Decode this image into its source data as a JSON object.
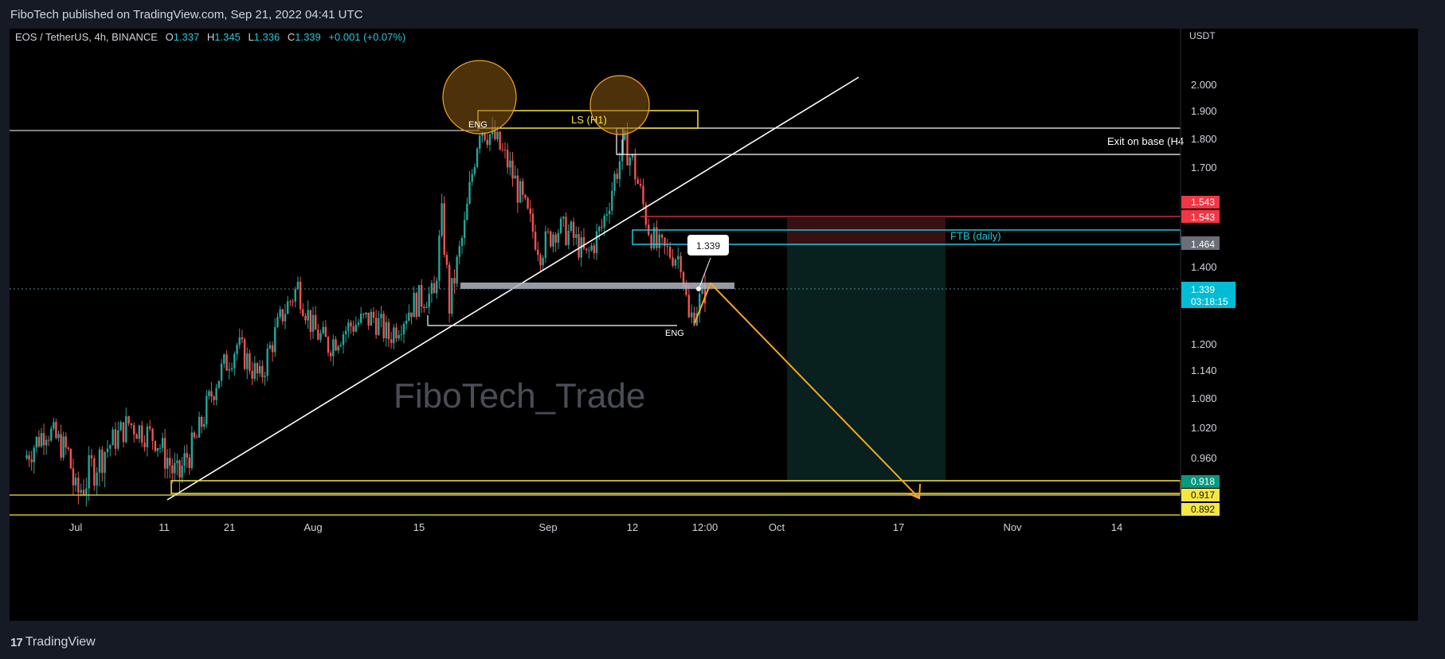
{
  "header": {
    "published": "FiboTech published on TradingView.com, Sep 21, 2022 04:41 UTC"
  },
  "footer": {
    "brand": "TradingView"
  },
  "legend": {
    "symbol": "EOS / TetherUS, 4h, BINANCE",
    "o_label": "O",
    "o_value": "1.337",
    "h_label": "H",
    "h_value": "1.345",
    "l_label": "L",
    "l_value": "1.336",
    "c_label": "C",
    "c_value": "1.339",
    "change": "+0.001 (+0.07%)"
  },
  "watermark": "FiboTech_Trade",
  "annotations": {
    "eng_top": "ENG",
    "ls": "LS (H1)",
    "exit": "Exit on base (H4",
    "ftb": "FTB (daily)",
    "eng_bottom": "ENG",
    "price_callout": "1.339"
  },
  "price_labels": {
    "red_top": "1.543",
    "red_2": "1.543",
    "gray": "1.464",
    "current": "1.339",
    "countdown": "03:18:15",
    "green": "0.918",
    "yellow_1": "0.917",
    "yellow_2": "0.892"
  },
  "colors": {
    "up": "#26a69a",
    "down": "#ef5350",
    "accent_yellow": "#f5e642",
    "cyan": "#26c6da",
    "orange": "#f5a623",
    "red_label": "#f23645",
    "green_label": "#089981"
  },
  "chart_data": {
    "type": "candlestick",
    "title": "EOS / TetherUS, 4h, BINANCE",
    "currency": "USDT",
    "y_ticks": [
      "2.000",
      "1.900",
      "1.800",
      "1.700",
      "1.400",
      "1.200",
      "1.140",
      "1.080",
      "1.020",
      "0.960"
    ],
    "x_ticks": [
      "Jul",
      "11",
      "21",
      "Aug",
      "15",
      "Sep",
      "12",
      "12:00",
      "Oct",
      "17",
      "Nov",
      "14"
    ],
    "price_path": [
      [
        "2022-06-24",
        0.96
      ],
      [
        "2022-06-27",
        1.02
      ],
      [
        "2022-06-30",
        0.97
      ],
      [
        "2022-07-01",
        0.91
      ],
      [
        "2022-07-04",
        0.97
      ],
      [
        "2022-07-07",
        1.03
      ],
      [
        "2022-07-10",
        1.0
      ],
      [
        "2022-07-13",
        0.93
      ],
      [
        "2022-07-16",
        1.0
      ],
      [
        "2022-07-19",
        1.12
      ],
      [
        "2022-07-22",
        1.2
      ],
      [
        "2022-07-25",
        1.12
      ],
      [
        "2022-07-28",
        1.28
      ],
      [
        "2022-07-30",
        1.35
      ],
      [
        "2022-08-01",
        1.24
      ],
      [
        "2022-08-03",
        1.2
      ],
      [
        "2022-08-06",
        1.25
      ],
      [
        "2022-08-09",
        1.27
      ],
      [
        "2022-08-11",
        1.22
      ],
      [
        "2022-08-14",
        1.3
      ],
      [
        "2022-08-16",
        1.33
      ],
      [
        "2022-08-17",
        1.32
      ],
      [
        "2022-08-18",
        1.55
      ],
      [
        "2022-08-19",
        1.3
      ],
      [
        "2022-08-21",
        1.52
      ],
      [
        "2022-08-23",
        1.85
      ],
      [
        "2022-08-25",
        1.8
      ],
      [
        "2022-08-27",
        1.7
      ],
      [
        "2022-08-29",
        1.57
      ],
      [
        "2022-08-31",
        1.45
      ],
      [
        "2022-09-02",
        1.52
      ],
      [
        "2022-09-04",
        1.5
      ],
      [
        "2022-09-06",
        1.43
      ],
      [
        "2022-09-08",
        1.52
      ],
      [
        "2022-09-10",
        1.7
      ],
      [
        "2022-09-11",
        1.78
      ],
      [
        "2022-09-12",
        1.72
      ],
      [
        "2022-09-13",
        1.62
      ],
      [
        "2022-09-14",
        1.52
      ],
      [
        "2022-09-15",
        1.46
      ],
      [
        "2022-09-17",
        1.44
      ],
      [
        "2022-09-18",
        1.43
      ],
      [
        "2022-09-19",
        1.26
      ],
      [
        "2022-09-20",
        1.3
      ],
      [
        "2022-09-21",
        1.339
      ]
    ],
    "levels": {
      "exit_base_top": 1.83,
      "exit_base_bottom": 1.745,
      "ftb_top": 1.5,
      "ftb_bottom": 1.464,
      "stop": 1.543,
      "target": 0.918,
      "support_1": 0.917,
      "support_2": 0.892,
      "current": 1.339
    },
    "grid": false
  }
}
